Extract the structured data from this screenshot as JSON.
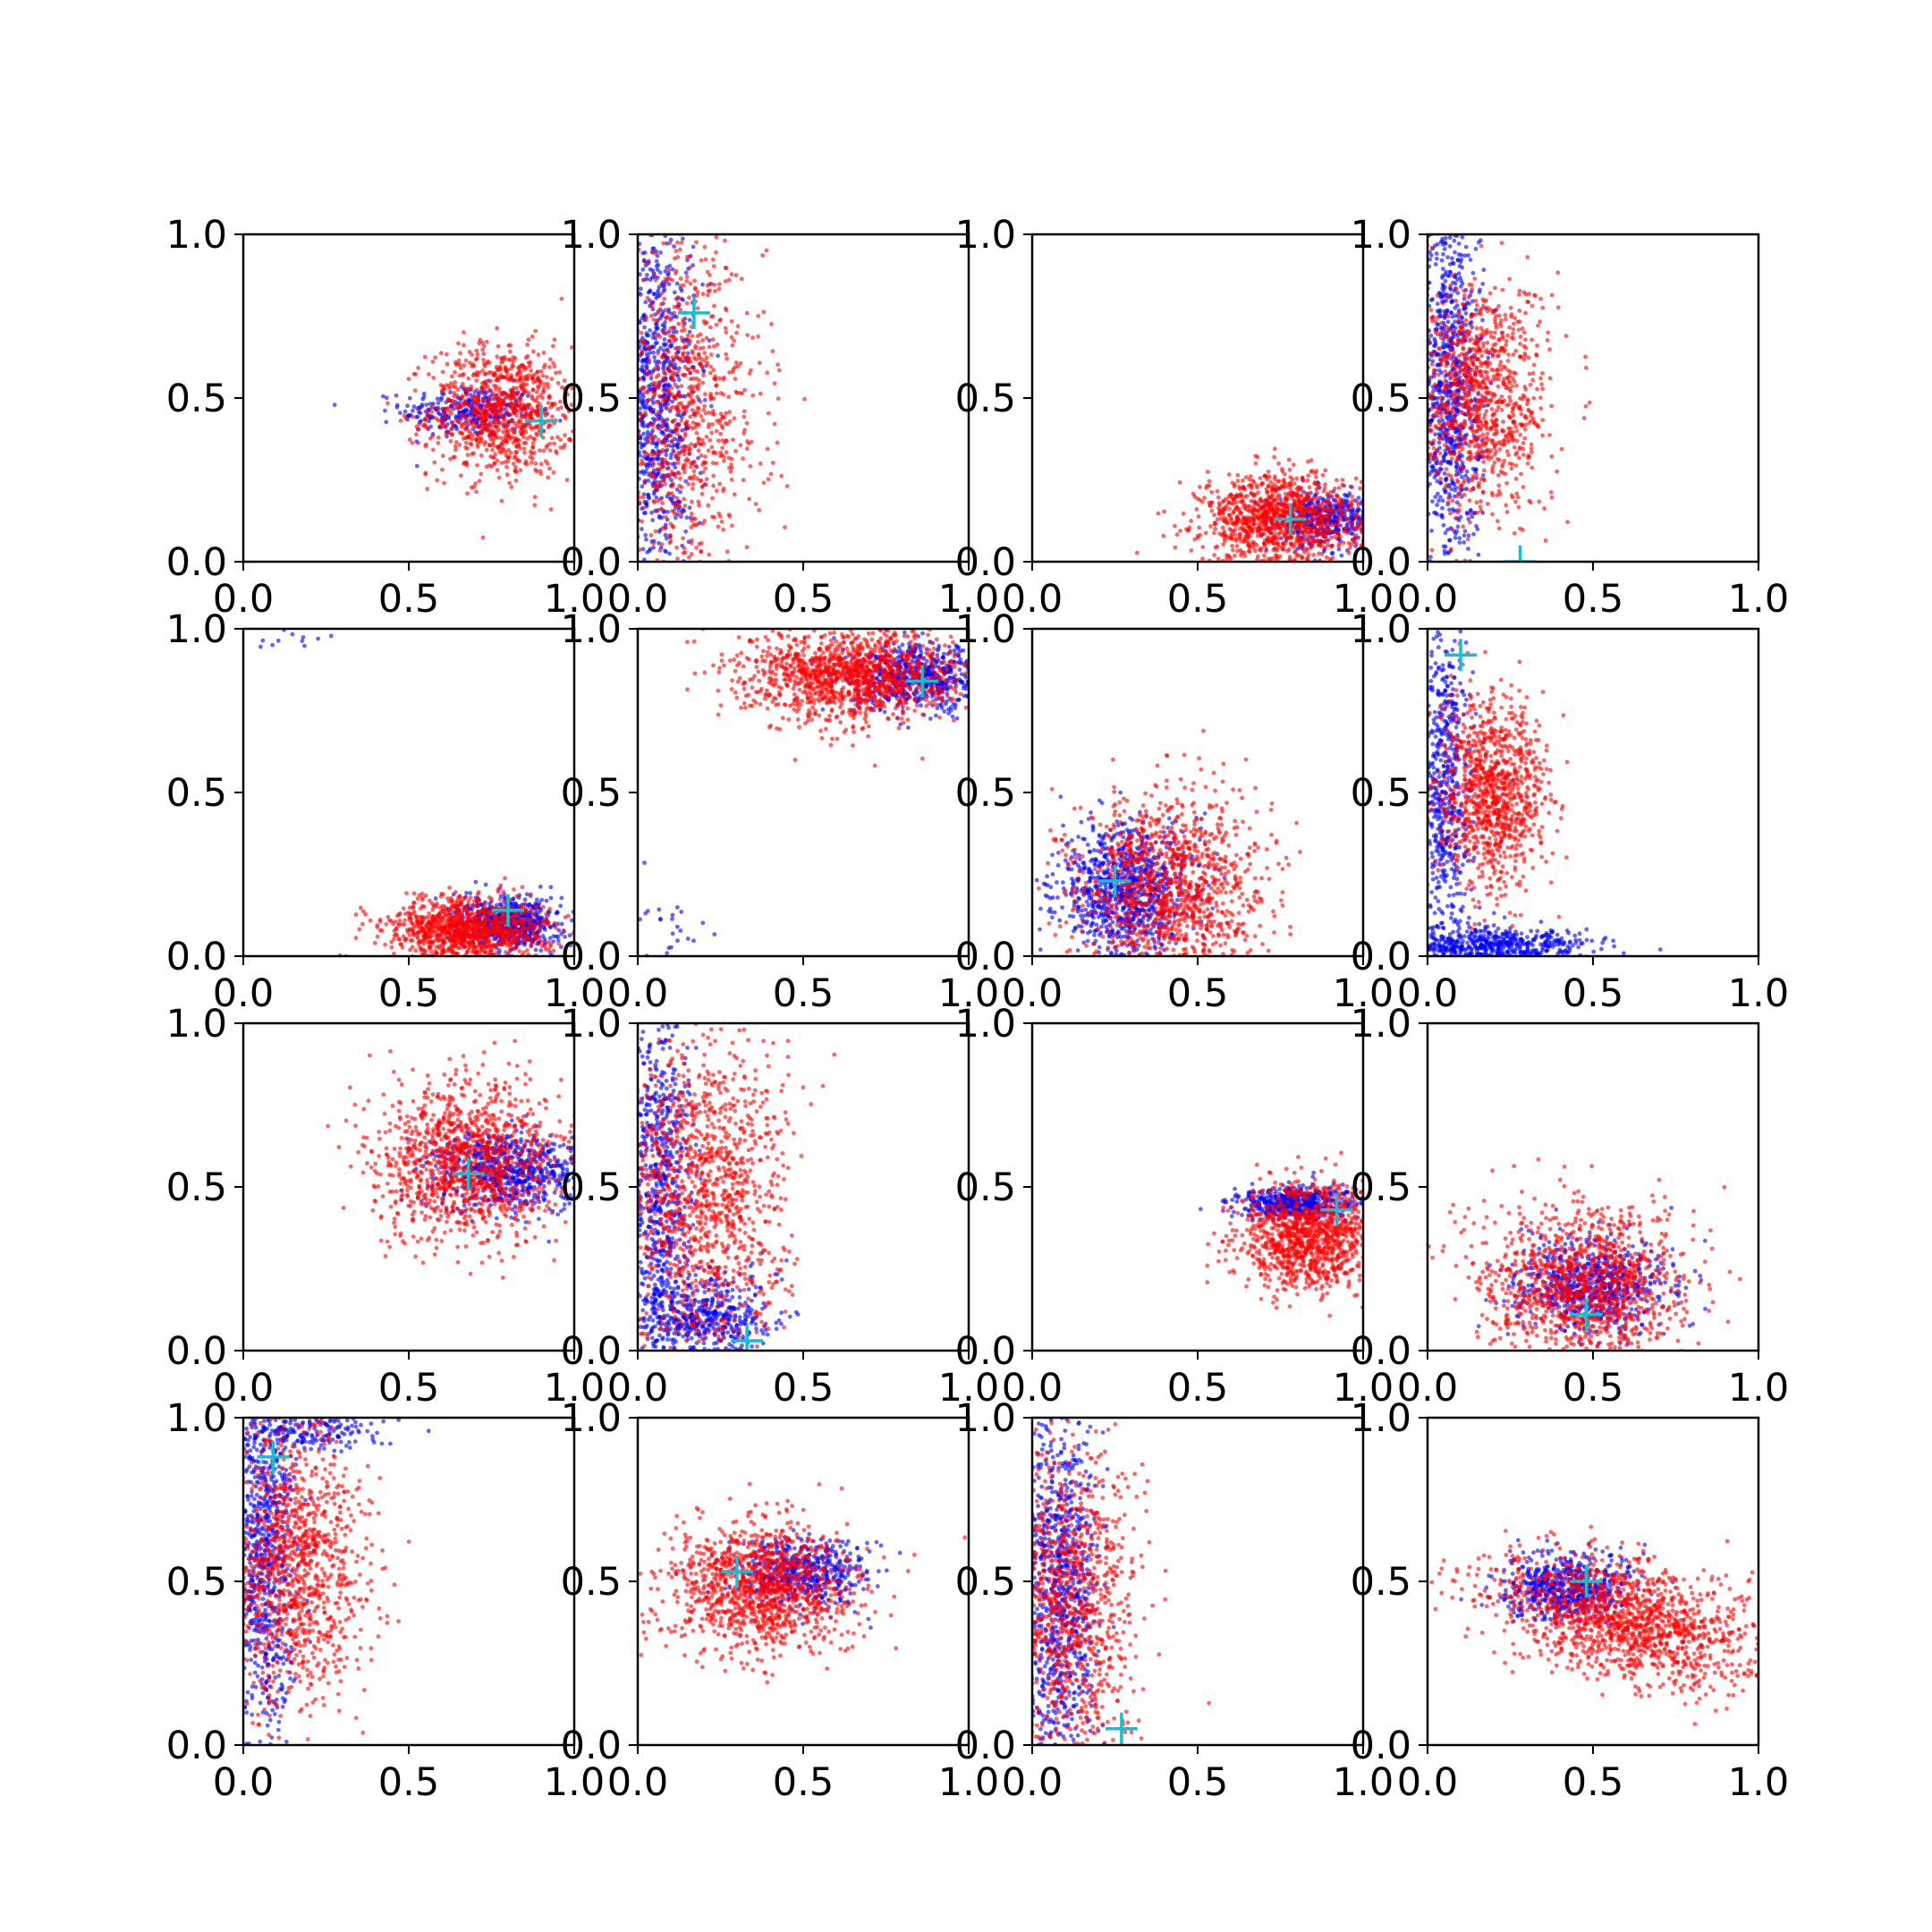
{
  "figure": {
    "background": "#ffffff"
  },
  "colors": {
    "series_blue": "#0000ff",
    "series_red": "#ff0000",
    "marker": "#17becf",
    "axis": "#000000"
  },
  "chart_data": [
    {
      "type": "scatter",
      "xlim": [
        0,
        1
      ],
      "ylim": [
        0,
        1
      ],
      "x_ticks": [
        "0.0",
        "0.5",
        "1.0"
      ],
      "y_ticks": [
        "0.0",
        "0.5",
        "1.0"
      ],
      "grid": false,
      "series": [
        {
          "color": "#0000ff",
          "center": [
            0.68,
            0.46
          ],
          "spread": [
            0.1,
            0.04
          ],
          "corr": 0,
          "n": 300
        },
        {
          "color": "#ff0000",
          "center": [
            0.78,
            0.46
          ],
          "spread": [
            0.11,
            0.1
          ],
          "corr": 0,
          "n": 900
        }
      ],
      "marker": [
        0.9,
        0.43
      ]
    },
    {
      "type": "scatter",
      "xlim": [
        0,
        1
      ],
      "ylim": [
        0,
        1
      ],
      "x_ticks": [
        "0.0",
        "0.5",
        "1.0"
      ],
      "y_ticks": [
        "0.0",
        "0.5",
        "1.0"
      ],
      "grid": false,
      "series": [
        {
          "color": "#0000ff",
          "center": [
            0.05,
            0.5
          ],
          "spread": [
            0.06,
            0.3
          ],
          "corr": 0,
          "n": 900
        },
        {
          "color": "#ff0000",
          "center": [
            0.14,
            0.45
          ],
          "spread": [
            0.12,
            0.26
          ],
          "corr": 0,
          "n": 900
        }
      ],
      "marker": [
        0.17,
        0.76
      ]
    },
    {
      "type": "scatter",
      "xlim": [
        0,
        1
      ],
      "ylim": [
        0,
        1
      ],
      "x_ticks": [
        "0.0",
        "0.5",
        "1.0"
      ],
      "y_ticks": [
        "0.0",
        "0.5",
        "1.0"
      ],
      "grid": false,
      "series": [
        {
          "color": "#0000ff",
          "center": [
            0.88,
            0.13
          ],
          "spread": [
            0.07,
            0.04
          ],
          "corr": 0,
          "n": 400
        },
        {
          "color": "#ff0000",
          "center": [
            0.75,
            0.13
          ],
          "spread": [
            0.12,
            0.07
          ],
          "corr": 0,
          "n": 1100
        }
      ],
      "marker": [
        0.78,
        0.13
      ]
    },
    {
      "type": "scatter",
      "xlim": [
        0,
        1
      ],
      "ylim": [
        0,
        1
      ],
      "x_ticks": [
        "0.0",
        "0.5",
        "1.0"
      ],
      "y_ticks": [
        "0.0",
        "0.5",
        "1.0"
      ],
      "grid": false,
      "series": [
        {
          "color": "#0000ff",
          "center": [
            0.06,
            0.55
          ],
          "spread": [
            0.05,
            0.3
          ],
          "corr": 0,
          "n": 900
        },
        {
          "color": "#ff0000",
          "center": [
            0.16,
            0.5
          ],
          "spread": [
            0.1,
            0.18
          ],
          "corr": 0,
          "n": 1000
        }
      ],
      "marker": [
        0.28,
        0.0
      ]
    },
    {
      "type": "scatter",
      "xlim": [
        0,
        1
      ],
      "ylim": [
        0,
        1
      ],
      "x_ticks": [
        "0.0",
        "0.5",
        "1.0"
      ],
      "y_ticks": [
        "0.0",
        "0.5",
        "1.0"
      ],
      "grid": false,
      "series": [
        {
          "color": "#0000ff",
          "center": [
            0.8,
            0.1
          ],
          "spread": [
            0.08,
            0.04
          ],
          "corr": 0,
          "n": 600
        },
        {
          "color": "#ff0000",
          "center": [
            0.68,
            0.08
          ],
          "spread": [
            0.12,
            0.05
          ],
          "corr": 0,
          "n": 1100
        },
        {
          "color": "#0000ff",
          "center": [
            0.15,
            0.97
          ],
          "spread": [
            0.06,
            0.02
          ],
          "corr": 0,
          "n": 12
        }
      ],
      "marker": [
        0.8,
        0.14
      ]
    },
    {
      "type": "scatter",
      "xlim": [
        0,
        1
      ],
      "ylim": [
        0,
        1
      ],
      "x_ticks": [
        "0.0",
        "0.5",
        "1.0"
      ],
      "y_ticks": [
        "0.0",
        "0.5",
        "1.0"
      ],
      "grid": false,
      "series": [
        {
          "color": "#0000ff",
          "center": [
            0.85,
            0.85
          ],
          "spread": [
            0.1,
            0.05
          ],
          "corr": 0,
          "n": 600
        },
        {
          "color": "#ff0000",
          "center": [
            0.65,
            0.86
          ],
          "spread": [
            0.16,
            0.07
          ],
          "corr": 0,
          "n": 1300
        },
        {
          "color": "#0000ff",
          "center": [
            0.1,
            0.08
          ],
          "spread": [
            0.06,
            0.07
          ],
          "corr": 0,
          "n": 30
        }
      ],
      "marker": [
        0.86,
        0.84
      ]
    },
    {
      "type": "scatter",
      "xlim": [
        0,
        1
      ],
      "ylim": [
        0,
        1
      ],
      "x_ticks": [
        "0.0",
        "0.5",
        "1.0"
      ],
      "y_ticks": [
        "0.0",
        "0.5",
        "1.0"
      ],
      "grid": false,
      "series": [
        {
          "color": "#0000ff",
          "center": [
            0.28,
            0.2
          ],
          "spread": [
            0.1,
            0.1
          ],
          "corr": 0,
          "n": 900
        },
        {
          "color": "#ff0000",
          "center": [
            0.42,
            0.2
          ],
          "spread": [
            0.14,
            0.15
          ],
          "corr": 0,
          "n": 1200
        }
      ],
      "marker": [
        0.25,
        0.23
      ]
    },
    {
      "type": "scatter",
      "xlim": [
        0,
        1
      ],
      "ylim": [
        0,
        1
      ],
      "x_ticks": [
        "0.0",
        "0.5",
        "1.0"
      ],
      "y_ticks": [
        "0.0",
        "0.5",
        "1.0"
      ],
      "grid": false,
      "series": [
        {
          "color": "#0000ff",
          "center": [
            0.05,
            0.5
          ],
          "spread": [
            0.04,
            0.28
          ],
          "corr": 0,
          "n": 600
        },
        {
          "color": "#0000ff",
          "center": [
            0.2,
            0.03
          ],
          "spread": [
            0.15,
            0.03
          ],
          "corr": 0,
          "n": 600
        },
        {
          "color": "#ff0000",
          "center": [
            0.2,
            0.5
          ],
          "spread": [
            0.08,
            0.14
          ],
          "corr": 0,
          "n": 1000
        }
      ],
      "marker": [
        0.1,
        0.92
      ]
    },
    {
      "type": "scatter",
      "xlim": [
        0,
        1
      ],
      "ylim": [
        0,
        1
      ],
      "x_ticks": [
        "0.0",
        "0.5",
        "1.0"
      ],
      "y_ticks": [
        "0.0",
        "0.5",
        "1.0"
      ],
      "grid": false,
      "series": [
        {
          "color": "#0000ff",
          "center": [
            0.8,
            0.55
          ],
          "spread": [
            0.12,
            0.06
          ],
          "corr": 0,
          "n": 700
        },
        {
          "color": "#ff0000",
          "center": [
            0.68,
            0.58
          ],
          "spread": [
            0.14,
            0.12
          ],
          "corr": 0,
          "n": 1200
        }
      ],
      "marker": [
        0.68,
        0.54
      ]
    },
    {
      "type": "scatter",
      "xlim": [
        0,
        1
      ],
      "ylim": [
        0,
        1
      ],
      "x_ticks": [
        "0.0",
        "0.5",
        "1.0"
      ],
      "y_ticks": [
        "0.0",
        "0.5",
        "1.0"
      ],
      "grid": false,
      "series": [
        {
          "color": "#0000ff",
          "center": [
            0.06,
            0.5
          ],
          "spread": [
            0.05,
            0.3
          ],
          "corr": 0,
          "n": 700
        },
        {
          "color": "#0000ff",
          "center": [
            0.2,
            0.1
          ],
          "spread": [
            0.1,
            0.07
          ],
          "corr": 0,
          "n": 500
        },
        {
          "color": "#ff0000",
          "center": [
            0.2,
            0.45
          ],
          "spread": [
            0.12,
            0.25
          ],
          "corr": 0,
          "n": 1200
        }
      ],
      "marker": [
        0.33,
        0.03
      ]
    },
    {
      "type": "scatter",
      "xlim": [
        0,
        1
      ],
      "ylim": [
        0,
        1
      ],
      "x_ticks": [
        "0.0",
        "0.5",
        "1.0"
      ],
      "y_ticks": [
        "0.0",
        "0.5",
        "1.0"
      ],
      "grid": false,
      "series": [
        {
          "color": "#0000ff",
          "center": [
            0.8,
            0.45
          ],
          "spread": [
            0.09,
            0.025
          ],
          "corr": 0,
          "n": 500
        },
        {
          "color": "#ff0000",
          "center": [
            0.83,
            0.35
          ],
          "spread": [
            0.1,
            0.08
          ],
          "corr": 0,
          "n": 1100
        }
      ],
      "marker": [
        0.92,
        0.43
      ]
    },
    {
      "type": "scatter",
      "xlim": [
        0,
        1
      ],
      "ylim": [
        0,
        1
      ],
      "x_ticks": [
        "0.0",
        "0.5",
        "1.0"
      ],
      "y_ticks": [
        "0.0",
        "0.5",
        "1.0"
      ],
      "grid": false,
      "series": [
        {
          "color": "#0000ff",
          "center": [
            0.5,
            0.2
          ],
          "spread": [
            0.12,
            0.07
          ],
          "corr": 0,
          "n": 700
        },
        {
          "color": "#ff0000",
          "center": [
            0.47,
            0.2
          ],
          "spread": [
            0.15,
            0.12
          ],
          "corr": 0,
          "n": 1200
        }
      ],
      "marker": [
        0.48,
        0.11
      ]
    },
    {
      "type": "scatter",
      "xlim": [
        0,
        1
      ],
      "ylim": [
        0,
        1
      ],
      "x_ticks": [
        "0.0",
        "0.5",
        "1.0"
      ],
      "y_ticks": [
        "0.0",
        "0.5",
        "1.0"
      ],
      "grid": false,
      "series": [
        {
          "color": "#0000ff",
          "center": [
            0.06,
            0.6
          ],
          "spread": [
            0.05,
            0.3
          ],
          "corr": 0,
          "n": 800
        },
        {
          "color": "#0000ff",
          "center": [
            0.2,
            0.96
          ],
          "spread": [
            0.12,
            0.03
          ],
          "corr": 0,
          "n": 200
        },
        {
          "color": "#ff0000",
          "center": [
            0.16,
            0.55
          ],
          "spread": [
            0.1,
            0.22
          ],
          "corr": 0,
          "n": 1100
        }
      ],
      "marker": [
        0.09,
        0.88
      ]
    },
    {
      "type": "scatter",
      "xlim": [
        0,
        1
      ],
      "ylim": [
        0,
        1
      ],
      "x_ticks": [
        "0.0",
        "0.5",
        "1.0"
      ],
      "y_ticks": [
        "0.0",
        "0.5",
        "1.0"
      ],
      "grid": false,
      "series": [
        {
          "color": "#0000ff",
          "center": [
            0.5,
            0.52
          ],
          "spread": [
            0.1,
            0.05
          ],
          "corr": 0,
          "n": 500
        },
        {
          "color": "#ff0000",
          "center": [
            0.38,
            0.48
          ],
          "spread": [
            0.14,
            0.1
          ],
          "corr": 0,
          "n": 1200
        }
      ],
      "marker": [
        0.3,
        0.53
      ]
    },
    {
      "type": "scatter",
      "xlim": [
        0,
        1
      ],
      "ylim": [
        0,
        1
      ],
      "x_ticks": [
        "0.0",
        "0.5",
        "1.0"
      ],
      "y_ticks": [
        "0.0",
        "0.5",
        "1.0"
      ],
      "grid": false,
      "series": [
        {
          "color": "#0000ff",
          "center": [
            0.08,
            0.45
          ],
          "spread": [
            0.06,
            0.3
          ],
          "corr": 0,
          "n": 900
        },
        {
          "color": "#ff0000",
          "center": [
            0.12,
            0.45
          ],
          "spread": [
            0.1,
            0.25
          ],
          "corr": 0,
          "n": 1000
        }
      ],
      "marker": [
        0.27,
        0.05
      ]
    },
    {
      "type": "scatter",
      "xlim": [
        0,
        1
      ],
      "ylim": [
        0,
        1
      ],
      "x_ticks": [
        "0.0",
        "0.5",
        "1.0"
      ],
      "y_ticks": [
        "0.0",
        "0.5",
        "1.0"
      ],
      "grid": false,
      "series": [
        {
          "color": "#0000ff",
          "center": [
            0.42,
            0.48
          ],
          "spread": [
            0.1,
            0.05
          ],
          "corr": 0,
          "n": 600
        },
        {
          "color": "#ff0000",
          "center": [
            0.6,
            0.38
          ],
          "spread": [
            0.2,
            0.1
          ],
          "corr": -0.45,
          "n": 1400
        }
      ],
      "marker": [
        0.48,
        0.5
      ]
    }
  ]
}
